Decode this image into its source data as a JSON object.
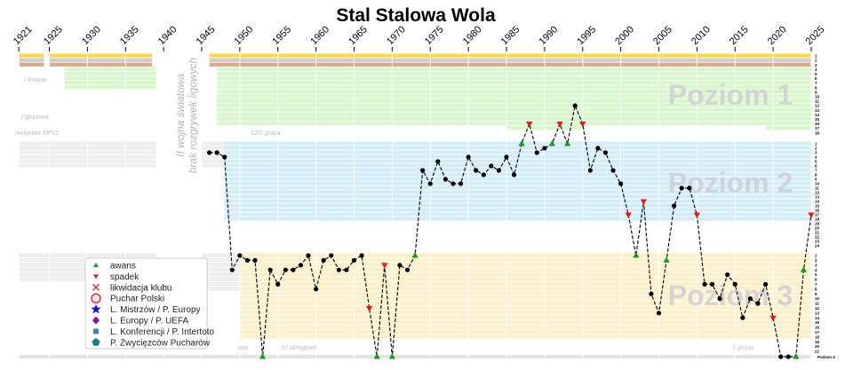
{
  "chart_data": {
    "type": "line",
    "title": "Stal Stalowa Wola",
    "x_ticks": [
      1921,
      1925,
      1930,
      1935,
      1940,
      1945,
      1950,
      1955,
      1960,
      1965,
      1970,
      1975,
      1980,
      1985,
      1990,
      1995,
      2000,
      2005,
      2010,
      2015,
      2020,
      2025
    ],
    "xlim": [
      1921,
      2025
    ],
    "levels": [
      {
        "name": "Poziom 1",
        "rows": 18
      },
      {
        "name": "Poziom 2",
        "rows": 24
      },
      {
        "name": "Poziom 3",
        "rows": 21
      },
      {
        "name": "Poziom 4",
        "rows": 1
      }
    ],
    "right_axis_level4_label": "Poziom 4",
    "band_colors": {
      "gold": "#fbd948",
      "silver": "#cdcdcd",
      "bronze": "#dca988",
      "level1": "#d9f7cc",
      "level2": "#d3ecf7",
      "level3": "#fdf1cb",
      "level4": "#e3e3e3",
      "other": "#eeeeee"
    },
    "line_style": "dashed black",
    "points": [
      {
        "year": 1946,
        "level": 2,
        "pos": 3,
        "m": "point"
      },
      {
        "year": 1947,
        "level": 2,
        "pos": 3,
        "m": "point"
      },
      {
        "year": 1948,
        "level": 2,
        "pos": 4,
        "m": "point"
      },
      {
        "year": 1949,
        "level": 3,
        "pos": 4,
        "m": "point"
      },
      {
        "year": 1950,
        "level": 3,
        "pos": 1,
        "m": "point"
      },
      {
        "year": 1951,
        "level": 3,
        "pos": 2,
        "m": "point"
      },
      {
        "year": 1952,
        "level": 3,
        "pos": 2,
        "m": "point"
      },
      {
        "year": 1953,
        "level": 4,
        "pos": 1,
        "m": "awans"
      },
      {
        "year": 1954,
        "level": 3,
        "pos": 4,
        "m": "point"
      },
      {
        "year": 1955,
        "level": 3,
        "pos": 7,
        "m": "point"
      },
      {
        "year": 1956,
        "level": 3,
        "pos": 4,
        "m": "point"
      },
      {
        "year": 1957,
        "level": 3,
        "pos": 4,
        "m": "point"
      },
      {
        "year": 1958,
        "level": 3,
        "pos": 3,
        "m": "point"
      },
      {
        "year": 1959,
        "level": 3,
        "pos": 1,
        "m": "point"
      },
      {
        "year": 1960,
        "level": 3,
        "pos": 8,
        "m": "point"
      },
      {
        "year": 1961,
        "level": 3,
        "pos": 2,
        "m": "point"
      },
      {
        "year": 1962,
        "level": 3,
        "pos": 1,
        "m": "point"
      },
      {
        "year": 1963,
        "level": 3,
        "pos": 4,
        "m": "point"
      },
      {
        "year": 1964,
        "level": 3,
        "pos": 4,
        "m": "point"
      },
      {
        "year": 1965,
        "level": 3,
        "pos": 2,
        "m": "point"
      },
      {
        "year": 1966,
        "level": 3,
        "pos": 1,
        "m": "point"
      },
      {
        "year": 1967,
        "level": 3,
        "pos": 12,
        "m": "spadek"
      },
      {
        "year": 1968,
        "level": 4,
        "pos": 1,
        "m": "awans"
      },
      {
        "year": 1969,
        "level": 3,
        "pos": 3,
        "m": "spadek"
      },
      {
        "year": 1970,
        "level": 4,
        "pos": 1,
        "m": "awans"
      },
      {
        "year": 1971,
        "level": 3,
        "pos": 3,
        "m": "point"
      },
      {
        "year": 1972,
        "level": 3,
        "pos": 4,
        "m": "point"
      },
      {
        "year": 1973,
        "level": 3,
        "pos": 1,
        "m": "awans"
      },
      {
        "year": 1974,
        "level": 2,
        "pos": 7,
        "m": "point"
      },
      {
        "year": 1975,
        "level": 2,
        "pos": 10,
        "m": "point"
      },
      {
        "year": 1976,
        "level": 2,
        "pos": 5,
        "m": "point"
      },
      {
        "year": 1977,
        "level": 2,
        "pos": 9,
        "m": "point"
      },
      {
        "year": 1978,
        "level": 2,
        "pos": 10,
        "m": "point"
      },
      {
        "year": 1979,
        "level": 2,
        "pos": 10,
        "m": "point"
      },
      {
        "year": 1980,
        "level": 2,
        "pos": 4,
        "m": "point"
      },
      {
        "year": 1981,
        "level": 2,
        "pos": 7,
        "m": "point"
      },
      {
        "year": 1982,
        "level": 2,
        "pos": 8,
        "m": "point"
      },
      {
        "year": 1983,
        "level": 2,
        "pos": 6,
        "m": "point"
      },
      {
        "year": 1984,
        "level": 2,
        "pos": 7,
        "m": "point"
      },
      {
        "year": 1985,
        "level": 2,
        "pos": 4,
        "m": "point"
      },
      {
        "year": 1986,
        "level": 2,
        "pos": 8,
        "m": "point"
      },
      {
        "year": 1987,
        "level": 2,
        "pos": 1,
        "m": "awans"
      },
      {
        "year": 1988,
        "level": 1,
        "pos": 16,
        "m": "spadek"
      },
      {
        "year": 1989,
        "level": 2,
        "pos": 3,
        "m": "point"
      },
      {
        "year": 1990,
        "level": 2,
        "pos": 2,
        "m": "point"
      },
      {
        "year": 1991,
        "level": 2,
        "pos": 1,
        "m": "awans"
      },
      {
        "year": 1992,
        "level": 1,
        "pos": 16,
        "m": "spadek"
      },
      {
        "year": 1993,
        "level": 2,
        "pos": 1,
        "m": "awans"
      },
      {
        "year": 1994,
        "level": 1,
        "pos": 12,
        "m": "point"
      },
      {
        "year": 1995,
        "level": 1,
        "pos": 16,
        "m": "spadek"
      },
      {
        "year": 1996,
        "level": 2,
        "pos": 7,
        "m": "point"
      },
      {
        "year": 1997,
        "level": 2,
        "pos": 2,
        "m": "point"
      },
      {
        "year": 1998,
        "level": 2,
        "pos": 3,
        "m": "point"
      },
      {
        "year": 1999,
        "level": 2,
        "pos": 7,
        "m": "point"
      },
      {
        "year": 2000,
        "level": 2,
        "pos": 10,
        "m": "point"
      },
      {
        "year": 2001,
        "level": 2,
        "pos": 17,
        "m": "spadek"
      },
      {
        "year": 2002,
        "level": 3,
        "pos": 1,
        "m": "awans"
      },
      {
        "year": 2003,
        "level": 2,
        "pos": 14,
        "m": "spadek"
      },
      {
        "year": 2004,
        "level": 3,
        "pos": 9,
        "m": "point"
      },
      {
        "year": 2005,
        "level": 3,
        "pos": 13,
        "m": "point"
      },
      {
        "year": 2006,
        "level": 3,
        "pos": 2,
        "m": "awans"
      },
      {
        "year": 2007,
        "level": 2,
        "pos": 15,
        "m": "point"
      },
      {
        "year": 2008,
        "level": 2,
        "pos": 11,
        "m": "point"
      },
      {
        "year": 2009,
        "level": 2,
        "pos": 11,
        "m": "point"
      },
      {
        "year": 2010,
        "level": 2,
        "pos": 17,
        "m": "spadek"
      },
      {
        "year": 2011,
        "level": 3,
        "pos": 7,
        "m": "point"
      },
      {
        "year": 2012,
        "level": 3,
        "pos": 7,
        "m": "point"
      },
      {
        "year": 2013,
        "level": 3,
        "pos": 10,
        "m": "point"
      },
      {
        "year": 2014,
        "level": 3,
        "pos": 5,
        "m": "point"
      },
      {
        "year": 2015,
        "level": 3,
        "pos": 7,
        "m": "point"
      },
      {
        "year": 2016,
        "level": 3,
        "pos": 14,
        "m": "point"
      },
      {
        "year": 2017,
        "level": 3,
        "pos": 10,
        "m": "point"
      },
      {
        "year": 2018,
        "level": 3,
        "pos": 11,
        "m": "point"
      },
      {
        "year": 2019,
        "level": 3,
        "pos": 7,
        "m": "point"
      },
      {
        "year": 2020,
        "level": 3,
        "pos": 14,
        "m": "spadek"
      },
      {
        "year": 2021,
        "level": 4,
        "pos": 1,
        "m": "point"
      },
      {
        "year": 2022,
        "level": 4,
        "pos": 1,
        "m": "point"
      },
      {
        "year": 2023,
        "level": 4,
        "pos": 1,
        "m": "awans"
      },
      {
        "year": 2024,
        "level": 3,
        "pos": 4,
        "m": "awans"
      },
      {
        "year": 2025,
        "level": 2,
        "pos": 17,
        "m": "spadek"
      }
    ],
    "annotations": {
      "war_line1": "II wojna światowa",
      "war_line2": "brak rozgrywek ligowych",
      "prewar_1": "I liniowa",
      "prewar_2": "I grupowa",
      "prewar_3": "nieligowe MP11",
      "a_1946": "grupa",
      "a_1950": "12/1 grupa",
      "a_wo": "woj.",
      "a_okr": "10 okręgowe",
      "a_grupa": "1 grupa"
    },
    "legend": {
      "placement": "lower-left",
      "items": [
        {
          "label": "awans",
          "symbol": "triangle-up",
          "color": "#1a9a1a"
        },
        {
          "label": "spadek",
          "symbol": "triangle-down",
          "color": "#e81818"
        },
        {
          "label": "likwidacja klubu",
          "symbol": "x",
          "color": "#e81818"
        },
        {
          "label": "Puchar Polski",
          "symbol": "circle",
          "color": "#c0303a"
        },
        {
          "label": "L. Mistrzów / P. Europy",
          "symbol": "star",
          "color": "#1010d0"
        },
        {
          "label": "L. Europy / P. UEFA",
          "symbol": "diamond",
          "color": "#7a1a9a"
        },
        {
          "label": "L. Konferencji / P. Intertoto",
          "symbol": "square",
          "color": "#4a7fb0"
        },
        {
          "label": "P. Zwycięzców Pucharów",
          "symbol": "pentagon",
          "color": "#128080"
        }
      ]
    }
  }
}
